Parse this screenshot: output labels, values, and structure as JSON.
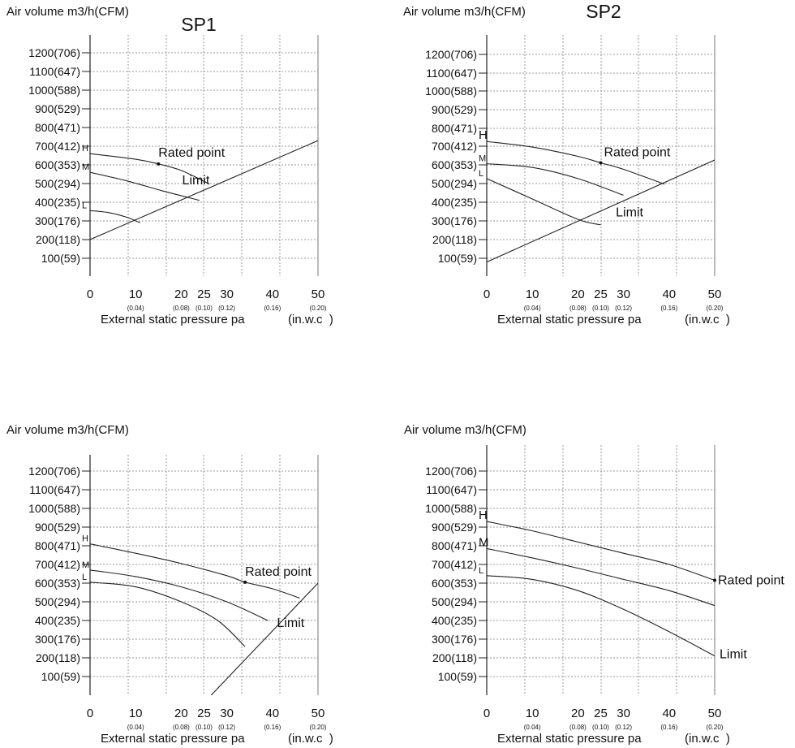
{
  "chart_data": [
    {
      "type": "line",
      "title": "SP1",
      "ylabel": "Air volume m3/h(CFM)",
      "xlabel": "External static pressure pa",
      "xunit_label": "(in.w.c  )",
      "xlim": [
        0,
        50
      ],
      "ylim": [
        0,
        1200
      ],
      "grid": true,
      "y_ticks": [
        "1200(706)",
        "1100(647)",
        "1000(588)",
        "900(529)",
        "800(471)",
        "700(412)",
        "600(353)",
        "500(294)",
        "400(235)",
        "300(176)",
        "200(118)",
        "100(59)"
      ],
      "x_ticks": [
        "0",
        "10",
        "20",
        "25",
        "30",
        "40",
        "50"
      ],
      "x_subticks": [
        "(0.04)",
        "(0.08)",
        "(0.10)",
        "(0.12)",
        "(0.16)",
        "(0.20)"
      ],
      "series": [
        {
          "name": "H",
          "x": [
            0,
            10,
            15,
            20,
            26
          ],
          "y": [
            660,
            630,
            605,
            570,
            500
          ]
        },
        {
          "name": "M",
          "x": [
            0,
            8,
            16,
            24
          ],
          "y": [
            560,
            515,
            460,
            410
          ]
        },
        {
          "name": "L",
          "x": [
            0,
            4,
            8,
            11
          ],
          "y": [
            355,
            345,
            320,
            290
          ]
        },
        {
          "name": "Limit",
          "x": [
            0,
            50
          ],
          "y": [
            200,
            730
          ]
        }
      ],
      "annotations": {
        "rated_point": {
          "label": "Rated point",
          "x": 15,
          "y": 605
        },
        "limit_label": "Limit"
      }
    },
    {
      "type": "line",
      "title": "SP2",
      "ylabel": "Air volume m3/h(CFM)",
      "xlabel": "External static pressure pa",
      "xunit_label": "(in.w.c  )",
      "xlim": [
        0,
        50
      ],
      "ylim": [
        0,
        1200
      ],
      "grid": true,
      "y_ticks": [
        "1200(706)",
        "1100(647)",
        "1000(588)",
        "900(529)",
        "800(471)",
        "700(412)",
        "600(353)",
        "500(294)",
        "400(235)",
        "300(176)",
        "200(118)",
        "100(59)"
      ],
      "x_ticks": [
        "0",
        "10",
        "20",
        "25",
        "30",
        "40",
        "50"
      ],
      "x_subticks": [
        "(0.04)",
        "(0.08)",
        "(0.10)",
        "(0.12)",
        "(0.16)",
        "(0.20)"
      ],
      "series": [
        {
          "name": "H",
          "x": [
            0,
            10,
            20,
            25,
            30,
            39
          ],
          "y": [
            730,
            700,
            650,
            615,
            580,
            500
          ]
        },
        {
          "name": "M",
          "x": [
            0,
            10,
            20,
            30
          ],
          "y": [
            610,
            590,
            530,
            440
          ]
        },
        {
          "name": "L",
          "x": [
            0,
            10,
            20,
            25
          ],
          "y": [
            530,
            420,
            310,
            280
          ]
        },
        {
          "name": "Limit",
          "x": [
            0,
            50
          ],
          "y": [
            80,
            630
          ]
        }
      ],
      "annotations": {
        "rated_point": {
          "label": "Rated point",
          "x": 25,
          "y": 615
        },
        "limit_label": "Limit"
      }
    },
    {
      "type": "line",
      "title": "",
      "ylabel": "Air volume m3/h(CFM)",
      "xlabel": "External static pressure pa",
      "xunit_label": "(in.w.c  )",
      "xlim": [
        0,
        50
      ],
      "ylim": [
        0,
        1200
      ],
      "grid": true,
      "y_ticks": [
        "1200(706)",
        "1100(647)",
        "1000(588)",
        "900(529)",
        "800(471)",
        "700(412)",
        "600(353)",
        "500(294)",
        "400(235)",
        "300(176)",
        "200(118)",
        "100(59)"
      ],
      "x_ticks": [
        "0",
        "10",
        "20",
        "25",
        "30",
        "40",
        "50"
      ],
      "x_subticks": [
        "(0.04)",
        "(0.08)",
        "(0.10)",
        "(0.12)",
        "(0.16)",
        "(0.20)"
      ],
      "series": [
        {
          "name": "H",
          "x": [
            0,
            10,
            20,
            30,
            34,
            40,
            46
          ],
          "y": [
            810,
            760,
            705,
            640,
            605,
            570,
            520
          ]
        },
        {
          "name": "M",
          "x": [
            0,
            10,
            20,
            30,
            39
          ],
          "y": [
            670,
            635,
            580,
            500,
            400
          ]
        },
        {
          "name": "L",
          "x": [
            0,
            10,
            20,
            28,
            34
          ],
          "y": [
            605,
            580,
            500,
            400,
            260
          ]
        },
        {
          "name": "Limit",
          "x": [
            25,
            50
          ],
          "y": [
            -40,
            600
          ]
        }
      ],
      "annotations": {
        "rated_point": {
          "label": "Rated point",
          "x": 34,
          "y": 605
        },
        "limit_label": "Limit"
      }
    },
    {
      "type": "line",
      "title": "",
      "ylabel": "Air volume m3/h(CFM)",
      "xlabel": "External static pressure pa",
      "xunit_label": "(in.w.c  )",
      "xlim": [
        0,
        50
      ],
      "ylim": [
        0,
        1200
      ],
      "grid": true,
      "y_ticks": [
        "1200(706)",
        "1100(647)",
        "1000(588)",
        "900(529)",
        "800(471)",
        "700(412)",
        "600(353)",
        "500(294)",
        "400(235)",
        "300(176)",
        "200(118)",
        "100(59)"
      ],
      "x_ticks": [
        "0",
        "10",
        "20",
        "25",
        "30",
        "40",
        "50"
      ],
      "x_subticks": [
        "(0.04)",
        "(0.08)",
        "(0.10)",
        "(0.12)",
        "(0.16)",
        "(0.20)"
      ],
      "series": [
        {
          "name": "H",
          "x": [
            0,
            10,
            20,
            30,
            40,
            50
          ],
          "y": [
            930,
            880,
            820,
            760,
            700,
            615
          ]
        },
        {
          "name": "M",
          "x": [
            0,
            10,
            20,
            30,
            40,
            50
          ],
          "y": [
            785,
            735,
            680,
            620,
            560,
            480
          ]
        },
        {
          "name": "L",
          "x": [
            0,
            10,
            20,
            30,
            40,
            50
          ],
          "y": [
            640,
            620,
            560,
            460,
            340,
            210
          ]
        }
      ],
      "annotations": {
        "rated_point": {
          "label": "Rated point",
          "x": 50,
          "y": 615
        },
        "limit_label": "Limit"
      }
    }
  ]
}
